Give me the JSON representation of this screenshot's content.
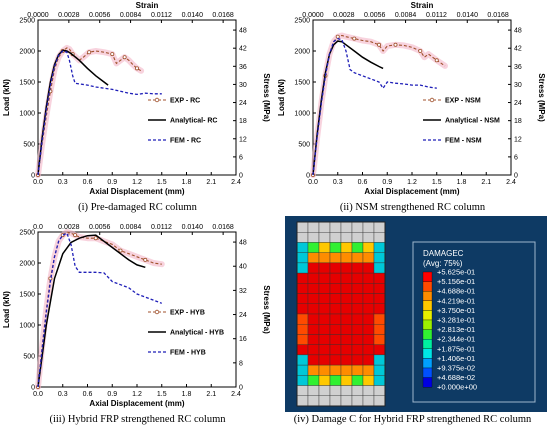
{
  "chart_data": [
    {
      "type": "line",
      "caption_num": "(i)",
      "caption_text": " Pre-damaged RC column",
      "xlabel": "Axial Displacement (mm)",
      "ylabel": "Load (kN)",
      "x2label": "Strain",
      "y2label": "Stress (MPa)",
      "xlim": [
        0,
        2.4
      ],
      "ylim": [
        0,
        2500
      ],
      "xticks": [
        "0.0",
        "0.3",
        "0.6",
        "0.9",
        "1.2",
        "1.5",
        "1.8",
        "2.1",
        "2.4"
      ],
      "yticks": [
        "0",
        "500",
        "1000",
        "1500",
        "2000",
        "2500"
      ],
      "x2ticks": [
        "0.0000",
        "0.0028",
        "0.0056",
        "0.0084",
        "0.0112",
        "0.0140",
        "0.0168"
      ],
      "y2ticks": [
        "0",
        "6",
        "12",
        "18",
        "24",
        "30",
        "36",
        "42",
        "48"
      ],
      "series": [
        {
          "name": "EXP - RC",
          "style": "exp",
          "color": "#a0522d",
          "x": [
            0,
            0.05,
            0.1,
            0.15,
            0.2,
            0.25,
            0.3,
            0.35,
            0.38,
            0.42,
            0.5,
            0.55,
            0.62,
            0.7,
            0.8,
            0.9,
            0.95,
            1.0,
            1.05,
            1.1,
            1.15,
            1.2,
            1.25
          ],
          "y": [
            0,
            500,
            950,
            1350,
            1700,
            1900,
            2000,
            2050,
            2030,
            1950,
            1850,
            1900,
            1980,
            2000,
            1980,
            1950,
            1800,
            1850,
            1900,
            1850,
            1780,
            1720,
            1680
          ]
        },
        {
          "name": "Analytical- RC",
          "style": "solid",
          "color": "#000000",
          "x": [
            0,
            0.05,
            0.1,
            0.15,
            0.2,
            0.25,
            0.3,
            0.35,
            0.4,
            0.5,
            0.6,
            0.7,
            0.8,
            0.85
          ],
          "y": [
            0,
            600,
            1100,
            1500,
            1780,
            1940,
            2010,
            2000,
            1960,
            1850,
            1720,
            1600,
            1500,
            1450
          ]
        },
        {
          "name": "FEM - RC",
          "style": "dash",
          "color": "#1f1fb8",
          "x": [
            0,
            0.05,
            0.1,
            0.15,
            0.2,
            0.25,
            0.3,
            0.35,
            0.38,
            0.42,
            0.45,
            0.5,
            0.6,
            0.7,
            0.8,
            0.9,
            1.0,
            1.1,
            1.2,
            1.3,
            1.4,
            1.5
          ],
          "y": [
            0,
            550,
            1050,
            1450,
            1750,
            1930,
            2000,
            1980,
            1850,
            1600,
            1480,
            1470,
            1450,
            1420,
            1400,
            1380,
            1350,
            1320,
            1300,
            1320,
            1310,
            1310
          ]
        }
      ]
    },
    {
      "type": "line",
      "caption_num": "(ii)",
      "caption_text": " NSM strengthened RC column",
      "xlabel": "Axial Displacement (mm)",
      "ylabel": "Load (kN)",
      "x2label": "Strain",
      "y2label": "Stress (MPa)",
      "xlim": [
        0,
        2.4
      ],
      "ylim": [
        0,
        2500
      ],
      "xticks": [
        "0.0",
        "0.3",
        "0.6",
        "0.9",
        "1.2",
        "1.5",
        "1.8",
        "2.1",
        "2.4"
      ],
      "yticks": [
        "0",
        "500",
        "1000",
        "1500",
        "2000",
        "2500"
      ],
      "x2ticks": [
        "0.0000",
        "0.0028",
        "0.0056",
        "0.0084",
        "0.0112",
        "0.0140",
        "0.0168"
      ],
      "y2ticks": [
        "0",
        "6",
        "12",
        "18",
        "24",
        "30",
        "36",
        "42",
        "48"
      ],
      "series": [
        {
          "name": "EXP - NSM",
          "style": "exp",
          "color": "#a0522d",
          "x": [
            0,
            0.05,
            0.1,
            0.15,
            0.2,
            0.25,
            0.3,
            0.35,
            0.4,
            0.5,
            0.6,
            0.7,
            0.8,
            0.85,
            0.9,
            1.0,
            1.1,
            1.2,
            1.3,
            1.35,
            1.4,
            1.5,
            1.6
          ],
          "y": [
            0,
            600,
            1150,
            1600,
            1950,
            2150,
            2230,
            2250,
            2230,
            2200,
            2170,
            2150,
            2100,
            2000,
            2080,
            2100,
            2090,
            2060,
            2000,
            1900,
            1950,
            1850,
            1760
          ]
        },
        {
          "name": "Analytical - NSM",
          "style": "solid",
          "color": "#000000",
          "x": [
            0,
            0.05,
            0.1,
            0.15,
            0.2,
            0.25,
            0.3,
            0.35,
            0.4,
            0.5,
            0.6,
            0.7,
            0.8,
            0.85
          ],
          "y": [
            0,
            650,
            1200,
            1650,
            1950,
            2100,
            2160,
            2150,
            2100,
            2000,
            1900,
            1820,
            1750,
            1720
          ]
        },
        {
          "name": "FEM - NSM",
          "style": "dash",
          "color": "#1f1fb8",
          "x": [
            0,
            0.05,
            0.1,
            0.15,
            0.2,
            0.25,
            0.3,
            0.35,
            0.4,
            0.45,
            0.5,
            0.6,
            0.7,
            0.8,
            0.85,
            0.9,
            1.0,
            1.1,
            1.2,
            1.3,
            1.4,
            1.5
          ],
          "y": [
            0,
            600,
            1150,
            1600,
            1950,
            2150,
            2200,
            2180,
            2000,
            1700,
            1650,
            1600,
            1550,
            1500,
            1400,
            1500,
            1480,
            1470,
            1450,
            1450,
            1420,
            1400
          ]
        }
      ]
    },
    {
      "type": "line",
      "caption_num": "(iii)",
      "caption_text": " Hybrid FRP strengthened RC column",
      "xlabel": "Axial Displacement (mm)",
      "ylabel": "Load (kN)",
      "x2label": "",
      "y2label": "Stress (MPa)",
      "xlim": [
        0,
        2.4
      ],
      "ylim": [
        0,
        2500
      ],
      "xticks": [
        "0.0",
        "0.3",
        "0.6",
        "0.9",
        "1.2",
        "1.5",
        "1.8",
        "2.1",
        "2.4"
      ],
      "yticks": [
        "0",
        "500",
        "1000",
        "1500",
        "2000",
        "2500"
      ],
      "x2ticks": [
        "0.0",
        "0.0028",
        "0.0056",
        "0.0084",
        "0.0112",
        "0.0140",
        "0.0168"
      ],
      "y2ticks": [
        "0",
        "8",
        "16",
        "24",
        "32",
        "40",
        "48"
      ],
      "series": [
        {
          "name": "EXP - HYB",
          "style": "exp",
          "color": "#a0522d",
          "x": [
            0,
            0.05,
            0.1,
            0.15,
            0.2,
            0.25,
            0.3,
            0.35,
            0.4,
            0.45,
            0.5,
            0.6,
            0.7,
            0.8,
            0.9,
            1.0,
            1.1,
            1.2,
            1.3,
            1.4,
            1.5
          ],
          "y": [
            0,
            650,
            1250,
            1750,
            2100,
            2350,
            2450,
            2500,
            2480,
            2450,
            2420,
            2400,
            2400,
            2350,
            2300,
            2200,
            2150,
            2100,
            2050,
            2000,
            1980
          ]
        },
        {
          "name": "Analytical - HYB",
          "style": "solid",
          "color": "#000000",
          "x": [
            0,
            0.1,
            0.2,
            0.3,
            0.4,
            0.5,
            0.6,
            0.7,
            0.8,
            0.9,
            1.0,
            1.1,
            1.2,
            1.3
          ],
          "y": [
            0,
            1000,
            1750,
            2150,
            2330,
            2400,
            2440,
            2450,
            2350,
            2250,
            2150,
            2050,
            1970,
            1930
          ]
        },
        {
          "name": "FEM - HYB",
          "style": "dash",
          "color": "#1f1fb8",
          "x": [
            0,
            0.05,
            0.1,
            0.15,
            0.2,
            0.25,
            0.3,
            0.35,
            0.4,
            0.45,
            0.5,
            0.6,
            0.7,
            0.8,
            0.9,
            1.0,
            1.1,
            1.2,
            1.3,
            1.4,
            1.5
          ],
          "y": [
            0,
            600,
            1200,
            1700,
            2100,
            2350,
            2450,
            2480,
            2300,
            1950,
            1850,
            1850,
            1850,
            1840,
            1700,
            1650,
            1600,
            1500,
            1450,
            1400,
            1350
          ]
        }
      ]
    }
  ],
  "damage_panel": {
    "caption_num": "(iv)",
    "caption_text": " Damage C for Hybrid FRP strengthened RC column",
    "legend_title": "DAMAGEC",
    "legend_subtitle": "(Avg: 75%)",
    "legend_values": [
      "+5.625e-01",
      "+5.156e-01",
      "+4.688e-01",
      "+4.219e-01",
      "+3.750e-01",
      "+3.281e-01",
      "+2.813e-01",
      "+2.344e-01",
      "+1.875e-01",
      "+1.406e-01",
      "+9.375e-02",
      "+4.688e-02",
      "+0.000e+00"
    ],
    "legend_colors": [
      "#ff0000",
      "#ff4a00",
      "#ff8c00",
      "#ffc800",
      "#e8f000",
      "#9cf000",
      "#32f032",
      "#00f0a0",
      "#00e6e6",
      "#00a0ff",
      "#0050ff",
      "#0000e0"
    ],
    "colors": {
      "background": "#0e3a64",
      "cap": "#d0d0d0",
      "core": "#e60000"
    }
  }
}
